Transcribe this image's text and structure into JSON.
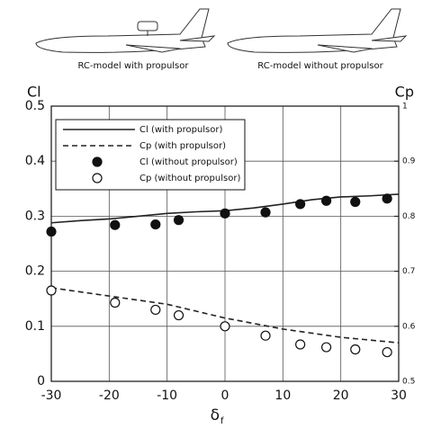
{
  "captions": [
    "RC-model with propulsor",
    "RC-model without propulsor"
  ],
  "chart_data": {
    "type": "line",
    "y_label": "Cl",
    "y2_label": "Cp",
    "x_label": "δ",
    "x_label_subscript": "f",
    "xlim": [
      -30,
      30
    ],
    "xticks": [
      -30,
      -20,
      -10,
      0,
      10,
      20,
      30
    ],
    "ylim": [
      0,
      0.5
    ],
    "yticks": [
      0,
      0.1,
      0.2,
      0.3,
      0.4,
      0.5
    ],
    "y2lim": [
      0.5,
      1
    ],
    "y2ticks": [
      0.5,
      0.6,
      0.7,
      0.8,
      0.9,
      1
    ],
    "grid": true,
    "legend": "upper left",
    "series": [
      {
        "name": "Cl (with propulsor)",
        "style": "solid",
        "color": "#222222",
        "x": [
          -30,
          -25,
          -20,
          -15,
          -10,
          -5,
          0,
          5,
          10,
          15,
          20,
          25,
          30
        ],
        "values": [
          0.288,
          0.292,
          0.295,
          0.3,
          0.305,
          0.308,
          0.31,
          0.315,
          0.322,
          0.33,
          0.335,
          0.337,
          0.34
        ]
      },
      {
        "name": "Cp (with propulsor)",
        "style": "dashed",
        "color": "#222222",
        "axis": "y2",
        "x": [
          -30,
          -20,
          -10,
          0,
          10,
          20,
          30
        ],
        "values": [
          0.67,
          0.655,
          0.64,
          0.615,
          0.595,
          0.58,
          0.57
        ]
      },
      {
        "name": "Cl (without propulsor)",
        "style": "filled",
        "color": "#111111",
        "x": [
          -30,
          -19,
          -12,
          -8,
          0,
          7,
          13,
          17.5,
          22.5,
          28
        ],
        "values": [
          0.272,
          0.284,
          0.285,
          0.293,
          0.305,
          0.307,
          0.322,
          0.328,
          0.326,
          0.332
        ]
      },
      {
        "name": "Cp (without propulsor)",
        "style": "open",
        "color": "#111111",
        "axis": "y2",
        "x": [
          -30,
          -19,
          -12,
          -8,
          0,
          7,
          13,
          17.5,
          22.5,
          28
        ],
        "values": [
          0.665,
          0.643,
          0.63,
          0.62,
          0.6,
          0.583,
          0.567,
          0.562,
          0.558,
          0.553
        ]
      }
    ]
  }
}
